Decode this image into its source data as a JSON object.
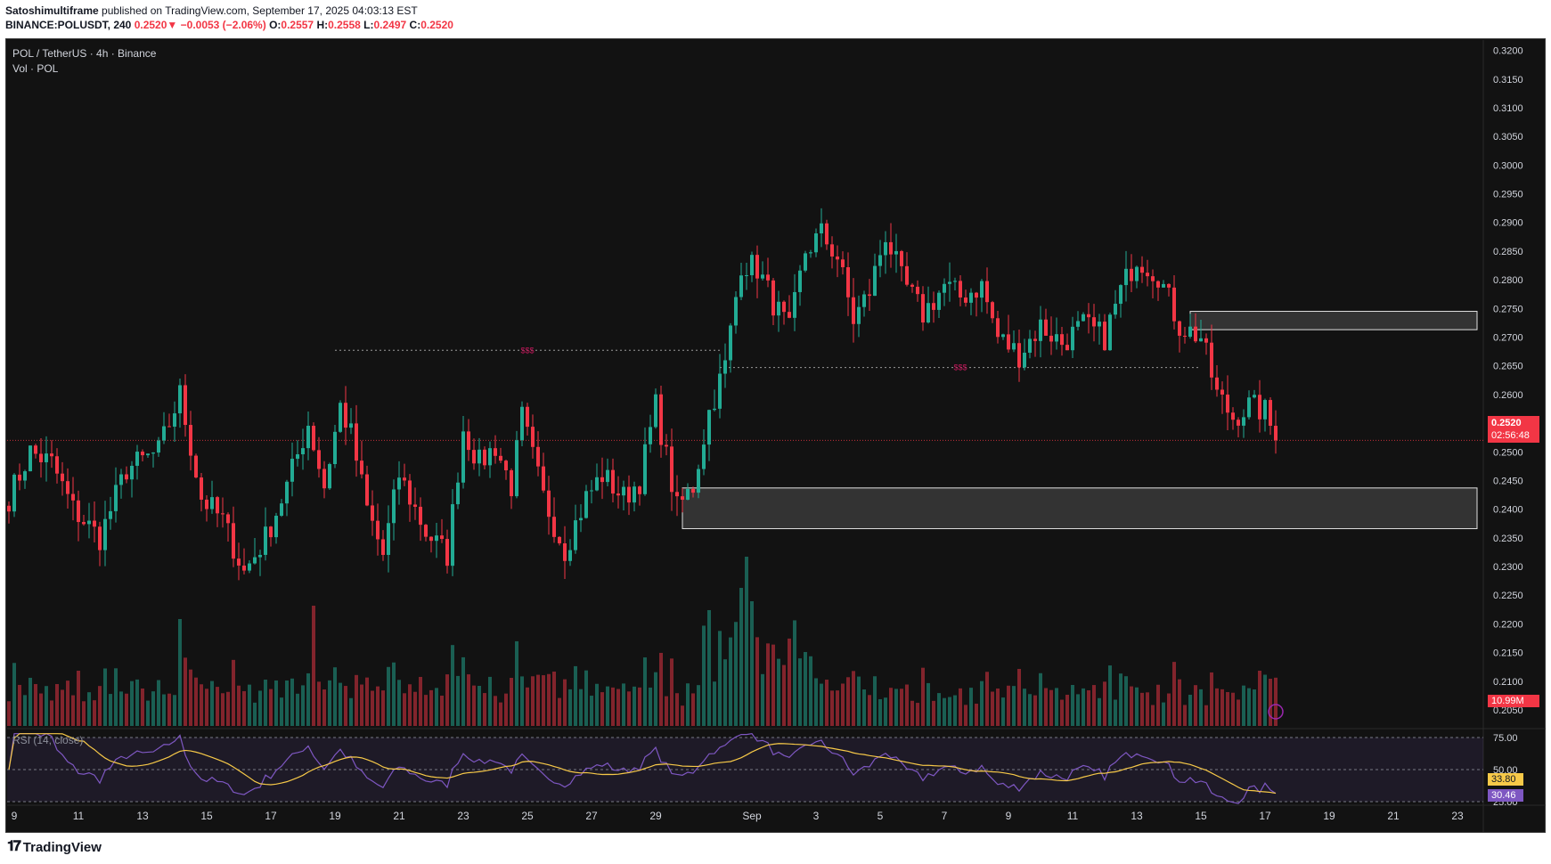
{
  "header": {
    "author": "Satoshimultiframe",
    "published": "published on TradingView.com, September 17, 2025 04:03:13 EST",
    "symbol": "BINANCE:POLUSDT, 240",
    "last": "0.2520",
    "change": "−0.0053 (−2.06%)",
    "o_label": "O:",
    "o": "0.2557",
    "h_label": "H:",
    "h": "0.2558",
    "l_label": "L:",
    "l": "0.2497",
    "c_label": "C:",
    "c": "0.2520"
  },
  "legend": {
    "title": "POL / TetherUS · 4h · Binance",
    "volume": "Vol · POL",
    "rsi": "RSI (14, close)"
  },
  "badges": {
    "price": "0.2520",
    "countdown": "02:56:48",
    "volume": "10.99M",
    "rsi_ma": "33.80",
    "rsi": "30.46"
  },
  "annotations": {
    "liquidity_high": "$$$",
    "liquidity_low": "$$$"
  },
  "colors": {
    "up": "#22ab94",
    "down": "#f23645",
    "rsi_line": "#7e57c2",
    "rsi_ma": "#f7c948",
    "background": "#121212"
  },
  "footer": {
    "brand": "TradingView"
  },
  "chart_data": {
    "type": "candlestick",
    "price_axis": [
      "0.3200",
      "0.3150",
      "0.3100",
      "0.3050",
      "0.3000",
      "0.2950",
      "0.2900",
      "0.2850",
      "0.2800",
      "0.2750",
      "0.2700",
      "0.2650",
      "0.2600",
      "0.2550",
      "0.2500",
      "0.2450",
      "0.2400",
      "0.2350",
      "0.2300",
      "0.2250",
      "0.2200",
      "0.2150",
      "0.2100",
      "0.2050"
    ],
    "ylim": [
      0.2022,
      0.3218
    ],
    "rsi_axis": [
      "75.00",
      "50.00",
      "25.00"
    ],
    "time_axis": [
      {
        "label": "9",
        "idx": 1
      },
      {
        "label": "11",
        "idx": 13
      },
      {
        "label": "13",
        "idx": 25
      },
      {
        "label": "15",
        "idx": 37
      },
      {
        "label": "17",
        "idx": 49
      },
      {
        "label": "19",
        "idx": 61
      },
      {
        "label": "21",
        "idx": 73
      },
      {
        "label": "23",
        "idx": 85
      },
      {
        "label": "25",
        "idx": 97
      },
      {
        "label": "27",
        "idx": 109
      },
      {
        "label": "29",
        "idx": 121
      },
      {
        "label": "Sep",
        "idx": 139
      },
      {
        "label": "3",
        "idx": 151
      },
      {
        "label": "5",
        "idx": 163
      },
      {
        "label": "7",
        "idx": 175
      },
      {
        "label": "9",
        "idx": 187
      },
      {
        "label": "11",
        "idx": 199
      },
      {
        "label": "13",
        "idx": 211
      },
      {
        "label": "15",
        "idx": 223
      },
      {
        "label": "17",
        "idx": 235
      },
      {
        "label": "19",
        "idx": 247
      },
      {
        "label": "21",
        "idx": 259
      },
      {
        "label": "23",
        "idx": 271
      }
    ],
    "current_price": 0.252,
    "zones": [
      {
        "label": "resistance",
        "from_idx": 221,
        "top": 0.2745,
        "bottom": 0.2713
      },
      {
        "label": "support",
        "from_idx": 126,
        "top": 0.2437,
        "bottom": 0.2366
      }
    ],
    "liquidity_lines": [
      {
        "price": 0.2677,
        "from_idx": 61,
        "to_idx": 133
      },
      {
        "price": 0.2647,
        "from_idx": 133,
        "to_idx": 223
      }
    ],
    "anchors": [
      [
        0,
        0.242
      ],
      [
        4,
        0.25
      ],
      [
        8,
        0.248
      ],
      [
        12,
        0.24
      ],
      [
        17,
        0.235
      ],
      [
        22,
        0.247
      ],
      [
        28,
        0.25
      ],
      [
        32,
        0.26
      ],
      [
        36,
        0.242
      ],
      [
        40,
        0.238
      ],
      [
        44,
        0.229
      ],
      [
        48,
        0.235
      ],
      [
        52,
        0.244
      ],
      [
        56,
        0.255
      ],
      [
        59,
        0.244
      ],
      [
        62,
        0.258
      ],
      [
        64,
        0.253
      ],
      [
        67,
        0.24
      ],
      [
        70,
        0.232
      ],
      [
        73,
        0.246
      ],
      [
        78,
        0.236
      ],
      [
        82,
        0.232
      ],
      [
        85,
        0.254
      ],
      [
        88,
        0.248
      ],
      [
        91,
        0.251
      ],
      [
        94,
        0.244
      ],
      [
        96,
        0.256
      ],
      [
        100,
        0.242
      ],
      [
        104,
        0.233
      ],
      [
        108,
        0.242
      ],
      [
        111,
        0.246
      ],
      [
        115,
        0.242
      ],
      [
        118,
        0.245
      ],
      [
        121,
        0.258
      ],
      [
        125,
        0.24
      ],
      [
        128,
        0.244
      ],
      [
        131,
        0.257
      ],
      [
        134,
        0.265
      ],
      [
        137,
        0.283
      ],
      [
        140,
        0.282
      ],
      [
        143,
        0.276
      ],
      [
        146,
        0.271
      ],
      [
        149,
        0.285
      ],
      [
        152,
        0.288
      ],
      [
        155,
        0.284
      ],
      [
        158,
        0.273
      ],
      [
        161,
        0.278
      ],
      [
        164,
        0.288
      ],
      [
        167,
        0.28
      ],
      [
        171,
        0.274
      ],
      [
        175,
        0.279
      ],
      [
        178,
        0.277
      ],
      [
        182,
        0.279
      ],
      [
        185,
        0.27
      ],
      [
        189,
        0.267
      ],
      [
        193,
        0.272
      ],
      [
        197,
        0.269
      ],
      [
        201,
        0.272
      ],
      [
        205,
        0.27
      ],
      [
        208,
        0.278
      ],
      [
        211,
        0.284
      ],
      [
        215,
        0.281
      ],
      [
        219,
        0.272
      ],
      [
        223,
        0.27
      ],
      [
        226,
        0.26
      ],
      [
        229,
        0.256
      ],
      [
        232,
        0.258
      ],
      [
        235,
        0.257
      ],
      [
        237,
        0.252
      ]
    ],
    "volume_badge": "10.99M"
  }
}
